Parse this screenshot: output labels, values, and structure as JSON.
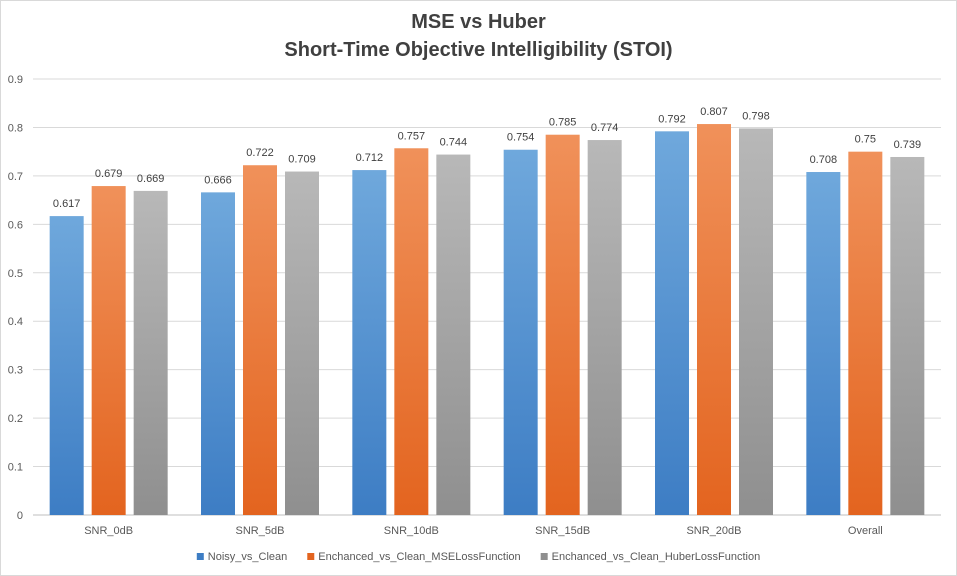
{
  "chart_data": {
    "type": "bar",
    "title": [
      "MSE vs Huber",
      "Short-Time Objective Intelligibility (STOI)"
    ],
    "categories": [
      "SNR_0dB",
      "SNR_5dB",
      "SNR_10dB",
      "SNR_15dB",
      "SNR_20dB",
      "Overall"
    ],
    "series": [
      {
        "name": "Noisy_vs_Clean",
        "values": [
          0.617,
          0.666,
          0.712,
          0.754,
          0.792,
          0.708
        ],
        "labels": [
          "0.617",
          "0.666",
          "0.712",
          "0.754",
          "0.792",
          "0.708"
        ],
        "color_top": "#6fa8dc",
        "color_bottom": "#3d7dc4"
      },
      {
        "name": "Enchanced_vs_Clean_MSELossFunction",
        "values": [
          0.679,
          0.722,
          0.757,
          0.785,
          0.807,
          0.75
        ],
        "labels": [
          "0.679",
          "0.722",
          "0.757",
          "0.785",
          "0.807",
          "0.75"
        ],
        "color_top": "#f0915a",
        "color_bottom": "#e3641f"
      },
      {
        "name": "Enchanced_vs_Clean_HuberLossFunction",
        "values": [
          0.669,
          0.709,
          0.744,
          0.774,
          0.798,
          0.739
        ],
        "labels": [
          "0.669",
          "0.709",
          "0.744",
          "0.774",
          "0.798",
          "0.739"
        ],
        "color_top": "#b8b8b8",
        "color_bottom": "#8f8f8f"
      }
    ],
    "yticks": [
      "0",
      "0.1",
      "0.2",
      "0.3",
      "0.4",
      "0.5",
      "0.6",
      "0.7",
      "0.8",
      "0.9"
    ],
    "ylim": [
      0,
      0.9
    ],
    "grid": true,
    "legend_position": "bottom"
  }
}
